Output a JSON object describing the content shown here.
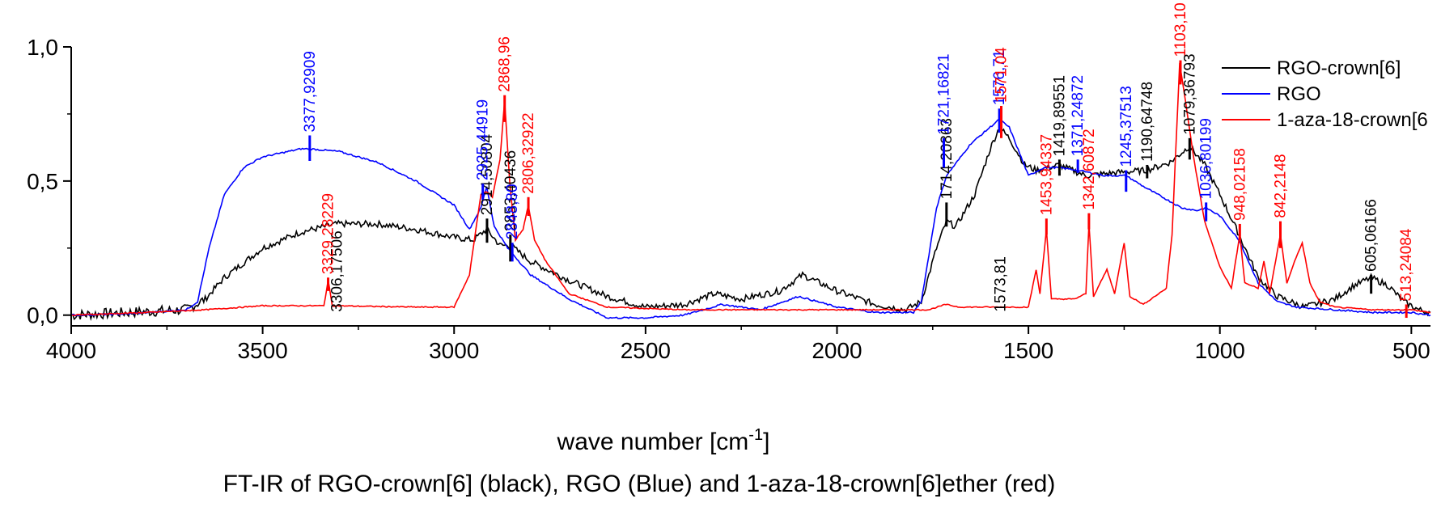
{
  "chart_data": {
    "type": "line",
    "caption": "FT-IR of RGO-crown[6] (black), RGO (Blue) and 1-aza-18-crown[6]ether (red)",
    "xlabel_main": "wave number [cm",
    "xlabel_sup": "-1",
    "xlabel_end": "]",
    "xlim": [
      4000,
      450
    ],
    "ylim": [
      -0.04,
      1.0
    ],
    "x_ticks": [
      {
        "v": 4000,
        "label": "4000"
      },
      {
        "v": 3500,
        "label": "3500"
      },
      {
        "v": 3000,
        "label": "3000"
      },
      {
        "v": 2500,
        "label": "2500"
      },
      {
        "v": 2000,
        "label": "2000"
      },
      {
        "v": 1500,
        "label": "1500"
      },
      {
        "v": 1000,
        "label": "1000"
      },
      {
        "v": 500,
        "label": "500"
      }
    ],
    "y_ticks": [
      {
        "v": 0.0,
        "label": "0,0"
      },
      {
        "v": 0.5,
        "label": "0,5"
      },
      {
        "v": 1.0,
        "label": "1,0"
      }
    ],
    "legend": [
      {
        "name": "RGO-crown[6]",
        "color": "#000000"
      },
      {
        "name": "RGO",
        "color": "#0000ff"
      },
      {
        "name": "1-aza-18-crown[6",
        "color": "#ff0000"
      }
    ],
    "series": [
      {
        "name": "RGO-crown[6]",
        "color": "#000000",
        "noise": 0.012,
        "points": [
          [
            4000,
            0.0
          ],
          [
            3850,
            0.01
          ],
          [
            3700,
            0.02
          ],
          [
            3650,
            0.06
          ],
          [
            3600,
            0.14
          ],
          [
            3500,
            0.25
          ],
          [
            3400,
            0.31
          ],
          [
            3306,
            0.34
          ],
          [
            3200,
            0.34
          ],
          [
            3100,
            0.32
          ],
          [
            3000,
            0.29
          ],
          [
            2950,
            0.28
          ],
          [
            2915,
            0.32
          ],
          [
            2880,
            0.26
          ],
          [
            2853,
            0.26
          ],
          [
            2800,
            0.2
          ],
          [
            2700,
            0.13
          ],
          [
            2600,
            0.07
          ],
          [
            2500,
            0.03
          ],
          [
            2400,
            0.04
          ],
          [
            2320,
            0.08
          ],
          [
            2250,
            0.06
          ],
          [
            2150,
            0.09
          ],
          [
            2090,
            0.15
          ],
          [
            2000,
            0.09
          ],
          [
            1900,
            0.04
          ],
          [
            1820,
            0.02
          ],
          [
            1780,
            0.05
          ],
          [
            1740,
            0.25
          ],
          [
            1714,
            0.35
          ],
          [
            1690,
            0.33
          ],
          [
            1640,
            0.45
          ],
          [
            1600,
            0.62
          ],
          [
            1576,
            0.7
          ],
          [
            1550,
            0.66
          ],
          [
            1510,
            0.56
          ],
          [
            1480,
            0.54
          ],
          [
            1420,
            0.56
          ],
          [
            1350,
            0.52
          ],
          [
            1280,
            0.53
          ],
          [
            1190,
            0.54
          ],
          [
            1130,
            0.57
          ],
          [
            1079,
            0.63
          ],
          [
            1040,
            0.56
          ],
          [
            1000,
            0.45
          ],
          [
            950,
            0.3
          ],
          [
            900,
            0.14
          ],
          [
            850,
            0.07
          ],
          [
            780,
            0.03
          ],
          [
            700,
            0.06
          ],
          [
            650,
            0.11
          ],
          [
            605,
            0.14
          ],
          [
            560,
            0.11
          ],
          [
            520,
            0.05
          ],
          [
            480,
            0.02
          ],
          [
            450,
            0.01
          ]
        ]
      },
      {
        "name": "RGO",
        "color": "#0000ff",
        "noise": 0.003,
        "points": [
          [
            4000,
            0.0
          ],
          [
            3850,
            0.005
          ],
          [
            3700,
            0.02
          ],
          [
            3670,
            0.05
          ],
          [
            3640,
            0.25
          ],
          [
            3600,
            0.45
          ],
          [
            3550,
            0.55
          ],
          [
            3500,
            0.59
          ],
          [
            3400,
            0.62
          ],
          [
            3377,
            0.62
          ],
          [
            3300,
            0.61
          ],
          [
            3200,
            0.57
          ],
          [
            3100,
            0.5
          ],
          [
            3000,
            0.41
          ],
          [
            2960,
            0.32
          ],
          [
            2930,
            0.4
          ],
          [
            2915,
            0.48
          ],
          [
            2895,
            0.33
          ],
          [
            2860,
            0.25
          ],
          [
            2800,
            0.15
          ],
          [
            2700,
            0.06
          ],
          [
            2600,
            -0.01
          ],
          [
            2500,
            -0.01
          ],
          [
            2400,
            0.0
          ],
          [
            2300,
            0.04
          ],
          [
            2200,
            0.02
          ],
          [
            2100,
            0.07
          ],
          [
            2000,
            0.03
          ],
          [
            1900,
            0.01
          ],
          [
            1800,
            0.01
          ],
          [
            1780,
            0.05
          ],
          [
            1740,
            0.4
          ],
          [
            1714,
            0.52
          ],
          [
            1650,
            0.64
          ],
          [
            1576,
            0.73
          ],
          [
            1550,
            0.7
          ],
          [
            1500,
            0.52
          ],
          [
            1460,
            0.55
          ],
          [
            1420,
            0.55
          ],
          [
            1371,
            0.54
          ],
          [
            1300,
            0.52
          ],
          [
            1245,
            0.52
          ],
          [
            1200,
            0.48
          ],
          [
            1150,
            0.44
          ],
          [
            1100,
            0.4
          ],
          [
            1060,
            0.39
          ],
          [
            1036,
            0.4
          ],
          [
            1000,
            0.37
          ],
          [
            950,
            0.28
          ],
          [
            900,
            0.12
          ],
          [
            850,
            0.05
          ],
          [
            800,
            0.03
          ],
          [
            700,
            0.02
          ],
          [
            600,
            0.01
          ],
          [
            500,
            0.01
          ],
          [
            450,
            0.0
          ]
        ]
      },
      {
        "name": "1-aza-18-crown[6",
        "color": "#ff0000",
        "noise": 0.002,
        "points": [
          [
            4000,
            0.0
          ],
          [
            3800,
            0.01
          ],
          [
            3650,
            0.02
          ],
          [
            3500,
            0.035
          ],
          [
            3340,
            0.035
          ],
          [
            3329,
            0.13
          ],
          [
            3318,
            0.035
          ],
          [
            3100,
            0.03
          ],
          [
            3000,
            0.03
          ],
          [
            2960,
            0.15
          ],
          [
            2930,
            0.45
          ],
          [
            2915,
            0.46
          ],
          [
            2900,
            0.44
          ],
          [
            2880,
            0.58
          ],
          [
            2868,
            0.8
          ],
          [
            2855,
            0.5
          ],
          [
            2840,
            0.28
          ],
          [
            2820,
            0.32
          ],
          [
            2806,
            0.41
          ],
          [
            2790,
            0.28
          ],
          [
            2760,
            0.2
          ],
          [
            2700,
            0.08
          ],
          [
            2600,
            0.03
          ],
          [
            2400,
            0.02
          ],
          [
            2000,
            0.02
          ],
          [
            1800,
            0.02
          ],
          [
            1760,
            0.02
          ],
          [
            1716,
            0.04
          ],
          [
            1680,
            0.03
          ],
          [
            1600,
            0.03
          ],
          [
            1500,
            0.03
          ],
          [
            1480,
            0.17
          ],
          [
            1470,
            0.08
          ],
          [
            1453,
            0.32
          ],
          [
            1440,
            0.06
          ],
          [
            1380,
            0.06
          ],
          [
            1350,
            0.08
          ],
          [
            1342,
            0.34
          ],
          [
            1330,
            0.07
          ],
          [
            1295,
            0.17
          ],
          [
            1275,
            0.08
          ],
          [
            1250,
            0.27
          ],
          [
            1235,
            0.07
          ],
          [
            1200,
            0.04
          ],
          [
            1140,
            0.1
          ],
          [
            1125,
            0.3
          ],
          [
            1105,
            0.94
          ],
          [
            1090,
            0.8
          ],
          [
            1070,
            0.6
          ],
          [
            1040,
            0.35
          ],
          [
            1000,
            0.18
          ],
          [
            970,
            0.1
          ],
          [
            948,
            0.3
          ],
          [
            935,
            0.12
          ],
          [
            900,
            0.1
          ],
          [
            885,
            0.2
          ],
          [
            870,
            0.08
          ],
          [
            842,
            0.3
          ],
          [
            825,
            0.12
          ],
          [
            805,
            0.2
          ],
          [
            785,
            0.27
          ],
          [
            765,
            0.12
          ],
          [
            740,
            0.05
          ],
          [
            700,
            0.03
          ],
          [
            600,
            0.02
          ],
          [
            513,
            0.02
          ],
          [
            500,
            0.02
          ],
          [
            450,
            0.01
          ]
        ]
      }
    ],
    "peak_labels": [
      {
        "x": 3377,
        "text": "3377,92909",
        "color": "#0000ff",
        "y0": 0.575,
        "y1": 0.67
      },
      {
        "x": 3306,
        "text": "3306,17506",
        "color": "#000000",
        "y0": 0.0,
        "y1": 0.0
      },
      {
        "x": 3329,
        "text": "3329,28229",
        "color": "#ff0000",
        "y0": 0.09,
        "y1": 0.14
      },
      {
        "x": 2914,
        "text": "2914,50804",
        "color": "#000000",
        "y0": 0.27,
        "y1": 0.36
      },
      {
        "x": 2925,
        "text": "2925,44919",
        "color": "#0000ff",
        "y0": 0.43,
        "y1": 0.49
      },
      {
        "x": 2868,
        "text": "2868,96",
        "color": "#ff0000",
        "y0": 0.72,
        "y1": 0.82
      },
      {
        "x": 2853,
        "text": "2853,40436",
        "color": "#000000",
        "y0": 0.2,
        "y1": 0.3
      },
      {
        "x": 2848,
        "text": "2848,80",
        "color": "#0000ff",
        "y0": 0.2,
        "y1": 0.27
      },
      {
        "x": 2806,
        "text": "2806,32922",
        "color": "#ff0000",
        "y0": 0.37,
        "y1": 0.44
      },
      {
        "x": 1714,
        "text": "1714,20863",
        "color": "#000000",
        "y0": 0.33,
        "y1": 0.42
      },
      {
        "x": 1721,
        "text": "1721,16821",
        "color": "#0000ff",
        "y0": 0.55,
        "y1": 0.66
      },
      {
        "x": 1576,
        "text": "1576,71",
        "color": "#0000ff",
        "y0": 0.68,
        "y1": 0.77
      },
      {
        "x": 1573,
        "text": "1573,81",
        "color": "#000000",
        "y0": 0.0,
        "y1": 0.0
      },
      {
        "x": 1571,
        "text": "1571,04",
        "color": "#ff0000",
        "y0": 0.66,
        "y1": 0.78
      },
      {
        "x": 1453,
        "text": "1453,94337",
        "color": "#ff0000",
        "y0": 0.3,
        "y1": 0.36
      },
      {
        "x": 1419,
        "text": "1419,89551",
        "color": "#000000",
        "y0": 0.52,
        "y1": 0.58
      },
      {
        "x": 1371,
        "text": "1371,24872",
        "color": "#0000ff",
        "y0": 0.53,
        "y1": 0.58
      },
      {
        "x": 1342,
        "text": "1342,60872",
        "color": "#ff0000",
        "y0": 0.32,
        "y1": 0.38
      },
      {
        "x": 1245,
        "text": "1245,37513",
        "color": "#0000ff",
        "y0": 0.46,
        "y1": 0.54
      },
      {
        "x": 1190,
        "text": "1190,64748",
        "color": "#000000",
        "y0": 0.51,
        "y1": 0.56
      },
      {
        "x": 1103,
        "text": "1103,10",
        "color": "#ff0000",
        "y0": 0.86,
        "y1": 0.95
      },
      {
        "x": 1079,
        "text": "1079,36793",
        "color": "#000000",
        "y0": 0.58,
        "y1": 0.66
      },
      {
        "x": 1036,
        "text": "1036,80199",
        "color": "#0000ff",
        "y0": 0.35,
        "y1": 0.42
      },
      {
        "x": 948,
        "text": "948,02158",
        "color": "#ff0000",
        "y0": 0.28,
        "y1": 0.34
      },
      {
        "x": 842,
        "text": "842,2148",
        "color": "#ff0000",
        "y0": 0.25,
        "y1": 0.35
      },
      {
        "x": 605,
        "text": "605,06166",
        "color": "#000000",
        "y0": 0.08,
        "y1": 0.15
      },
      {
        "x": 513,
        "text": "513,24084",
        "color": "#ff0000",
        "y0": -0.01,
        "y1": 0.04
      }
    ]
  }
}
